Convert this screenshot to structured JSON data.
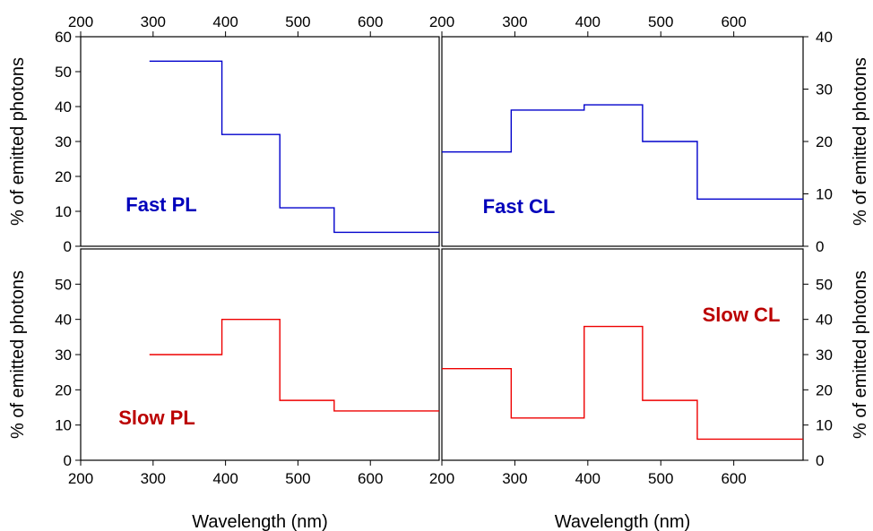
{
  "chart_data": [
    {
      "type": "line",
      "step": "histogram",
      "panel": "top-left",
      "annotation": "Fast PL",
      "color": "#0000cc",
      "ylabel": "% of emitted photons",
      "xlabel": "",
      "xlim": [
        200,
        695
      ],
      "ylim": [
        0,
        60
      ],
      "yticks": [
        0,
        10,
        20,
        30,
        40,
        50,
        60
      ],
      "xticks_top": [
        200,
        300,
        400,
        500,
        600
      ],
      "series": [
        {
          "bins": [
            [
              295,
              395,
              53
            ],
            [
              395,
              475,
              32
            ],
            [
              475,
              550,
              11
            ],
            [
              550,
              695,
              4
            ]
          ]
        }
      ]
    },
    {
      "type": "line",
      "step": "histogram",
      "panel": "top-right",
      "annotation": "Fast CL",
      "color": "#0000cc",
      "ylabel": "% of emitted photons",
      "xlabel": "",
      "xlim": [
        200,
        695
      ],
      "ylim": [
        0,
        40
      ],
      "yticks": [
        0,
        10,
        20,
        30,
        40
      ],
      "xticks_top": [
        200,
        300,
        400,
        500,
        600
      ],
      "series": [
        {
          "bins": [
            [
              200,
              295,
              18
            ],
            [
              295,
              395,
              26
            ],
            [
              395,
              475,
              27
            ],
            [
              475,
              550,
              20
            ],
            [
              550,
              695,
              9
            ]
          ]
        }
      ]
    },
    {
      "type": "line",
      "step": "histogram",
      "panel": "bottom-left",
      "annotation": "Slow PL",
      "color": "#ee0000",
      "ylabel": "% of emitted photons",
      "xlabel": "Wavelength (nm)",
      "xlim": [
        200,
        695
      ],
      "ylim": [
        0,
        60
      ],
      "yticks": [
        0,
        10,
        20,
        30,
        40,
        50
      ],
      "xticks": [
        200,
        300,
        400,
        500,
        600
      ],
      "series": [
        {
          "bins": [
            [
              295,
              395,
              30
            ],
            [
              395,
              475,
              40
            ],
            [
              475,
              550,
              17
            ],
            [
              550,
              695,
              14
            ]
          ]
        }
      ]
    },
    {
      "type": "line",
      "step": "histogram",
      "panel": "bottom-right",
      "annotation": "Slow CL",
      "color": "#ee0000",
      "ylabel": "% of emitted photons",
      "xlabel": "Wavelength (nm)",
      "xlim": [
        200,
        695
      ],
      "ylim": [
        0,
        60
      ],
      "yticks": [
        0,
        10,
        20,
        30,
        40,
        50
      ],
      "xticks": [
        200,
        300,
        400,
        500,
        600
      ],
      "series": [
        {
          "bins": [
            [
              200,
              295,
              26
            ],
            [
              295,
              395,
              12
            ],
            [
              395,
              475,
              38
            ],
            [
              475,
              550,
              17
            ],
            [
              550,
              695,
              6
            ]
          ]
        }
      ]
    }
  ],
  "colors": {
    "fast": "#0000cc",
    "slow": "#ee0000",
    "label_fast": "#0000bb",
    "label_slow": "#bb0000"
  }
}
